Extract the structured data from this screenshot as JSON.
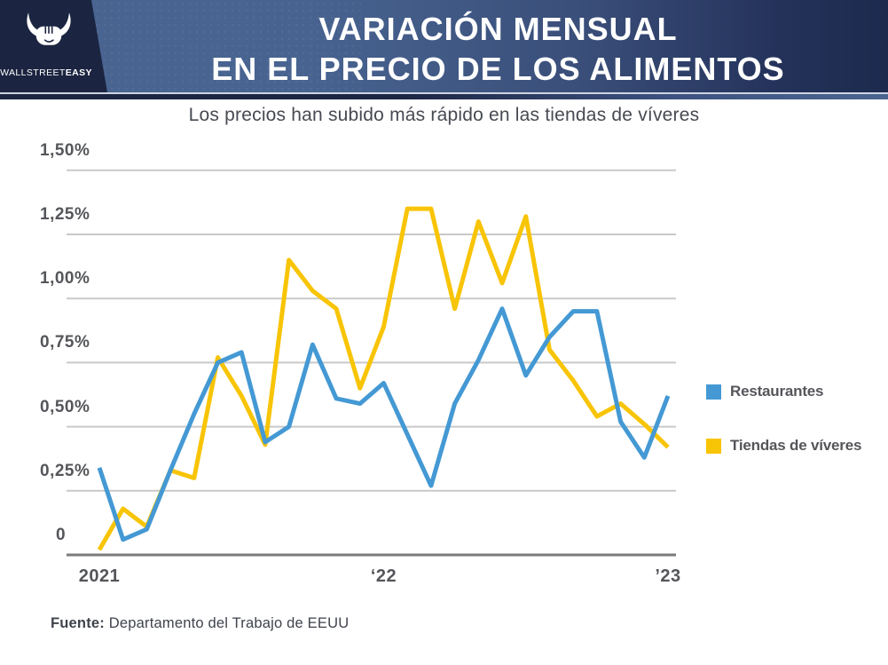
{
  "header": {
    "title_line1": "VARIACIÓN MENSUAL",
    "title_line2": "EN EL PRECIO DE LOS ALIMENTOS",
    "logo": {
      "brand_regular": "WALLSTREET",
      "brand_bold": "EASY",
      "icon": "bull-icon"
    },
    "colors": {
      "panel": "#1b2440",
      "gradient_left": "#4a6590",
      "gradient_right": "#1d2a4e",
      "text": "#ffffff"
    }
  },
  "subtitle": "Los precios han subido más rápido en las tiendas de víveres",
  "chart_data": {
    "type": "line",
    "months": [
      "2021-01",
      "2021-02",
      "2021-03",
      "2021-04",
      "2021-05",
      "2021-06",
      "2021-07",
      "2021-08",
      "2021-09",
      "2021-10",
      "2021-11",
      "2021-12",
      "2022-01",
      "2022-02",
      "2022-03",
      "2022-04",
      "2022-05",
      "2022-06",
      "2022-07",
      "2022-08",
      "2022-09",
      "2022-10",
      "2022-11",
      "2022-12",
      "2023-01"
    ],
    "series": [
      {
        "name": "Restaurantes",
        "color": "#4499D4",
        "values": [
          0.34,
          0.06,
          0.1,
          0.33,
          0.55,
          0.75,
          0.79,
          0.44,
          0.5,
          0.82,
          0.61,
          0.59,
          0.67,
          0.47,
          0.27,
          0.59,
          0.76,
          0.96,
          0.7,
          0.85,
          0.95,
          0.95,
          0.52,
          0.38,
          0.62
        ]
      },
      {
        "name": "Tiendas de víveres",
        "color": "#F8C406",
        "values": [
          0.02,
          0.18,
          0.11,
          0.33,
          0.3,
          0.77,
          0.62,
          0.43,
          1.15,
          1.03,
          0.96,
          0.65,
          0.89,
          1.35,
          1.35,
          0.96,
          1.3,
          1.06,
          1.32,
          0.8,
          0.68,
          0.54,
          0.59,
          0.51,
          0.42
        ]
      }
    ],
    "y_ticks": [
      {
        "value": 1.5,
        "label": "1,50%"
      },
      {
        "value": 1.25,
        "label": "1,25%"
      },
      {
        "value": 1.0,
        "label": "1,00%"
      },
      {
        "value": 0.75,
        "label": "0,75%"
      },
      {
        "value": 0.5,
        "label": "0,50%"
      },
      {
        "value": 0.25,
        "label": "0,25%"
      },
      {
        "value": 0.0,
        "label": "0"
      }
    ],
    "x_axis_labels": [
      {
        "label": "2021",
        "month_index": 0
      },
      {
        "label": "‘22",
        "month_index": 12
      },
      {
        "label": "’23",
        "month_index": 24
      }
    ],
    "ylim": [
      0,
      1.5
    ],
    "grid": true,
    "legend_position": "right",
    "grid_color": "#c9c9c9",
    "axis_color": "#7a7a7a"
  },
  "footer": {
    "source_label": "Fuente:",
    "source_text": " Departamento del Trabajo de EEUU"
  }
}
